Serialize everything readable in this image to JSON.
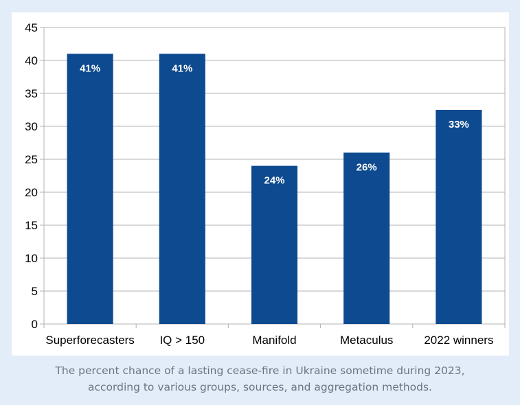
{
  "chart_data": {
    "type": "bar",
    "categories": [
      "Superforecasters",
      "IQ > 150",
      "Manifold",
      "Metaculus",
      "2022 winners"
    ],
    "values": [
      41,
      41,
      24,
      26,
      32.5
    ],
    "data_labels": [
      "41%",
      "41%",
      "24%",
      "26%",
      "33%"
    ],
    "title": "",
    "xlabel": "",
    "ylabel": "",
    "ylim": [
      0,
      45
    ],
    "yticks": [
      "0",
      "5",
      "10",
      "15",
      "20",
      "25",
      "30",
      "35",
      "40",
      "45"
    ],
    "grid": true,
    "bar_color": "#0d4a8f"
  },
  "caption": {
    "line1": "The percent chance of a lasting cease-fire in Ukraine sometime during 2023,",
    "line2": "according to various groups, sources, and aggregation methods."
  }
}
